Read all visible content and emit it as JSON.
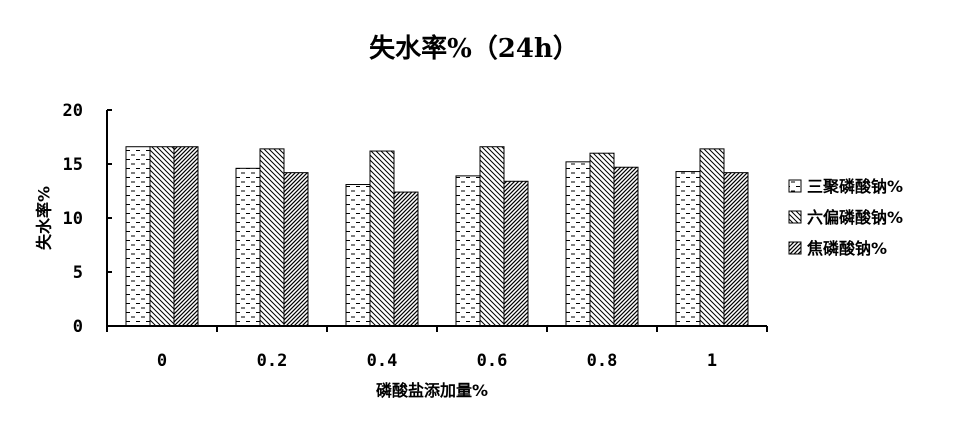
{
  "chart_data": {
    "type": "bar",
    "title": "失水率%（24h）",
    "xlabel": "磷酸盐添加量%",
    "ylabel": "失水率%",
    "categories": [
      "0",
      "0.2",
      "0.4",
      "0.6",
      "0.8",
      "1"
    ],
    "ylim": [
      0,
      20
    ],
    "yticks": [
      0,
      5,
      10,
      15,
      20
    ],
    "grid": false,
    "legend_position": "right",
    "series": [
      {
        "name": "三聚磷酸钠%",
        "pattern": "dash",
        "values": [
          16.6,
          14.6,
          13.1,
          13.9,
          15.2,
          14.3
        ]
      },
      {
        "name": "六偏磷酸钠%",
        "pattern": "back-diagonal",
        "values": [
          16.6,
          16.4,
          16.2,
          16.6,
          16.0,
          16.4
        ]
      },
      {
        "name": "焦磷酸钠%",
        "pattern": "diagonal",
        "values": [
          16.6,
          14.2,
          12.4,
          13.4,
          14.7,
          14.2
        ]
      }
    ]
  }
}
